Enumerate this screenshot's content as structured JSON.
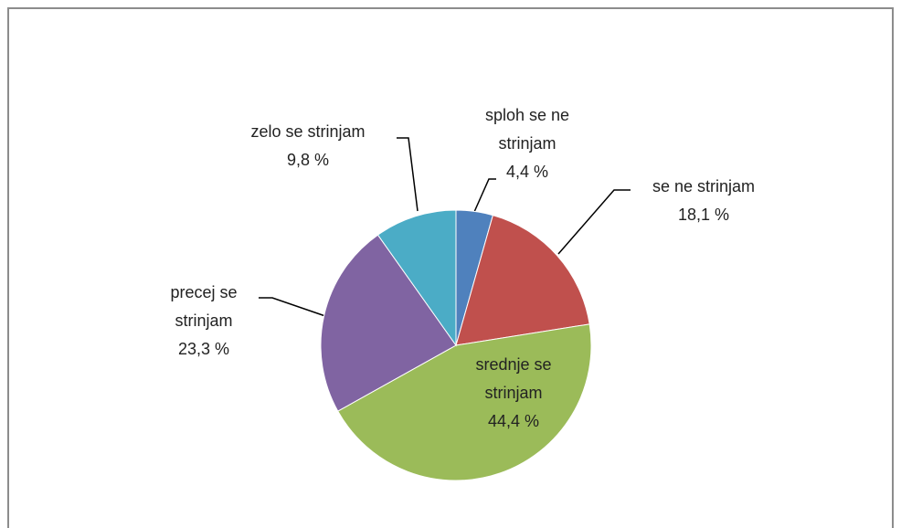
{
  "chart_data": {
    "type": "pie",
    "categories": [
      "sploh se ne strinjam",
      "se ne strinjam",
      "srednje se strinjam",
      "precej se strinjam",
      "zelo se strinjam"
    ],
    "values": [
      4.4,
      18.1,
      44.4,
      23.3,
      9.8
    ],
    "value_labels": [
      "4,4 %",
      "18,1 %",
      "44,4 %",
      "23,3 %",
      "9,8 %"
    ],
    "colors": [
      "#4f81bd",
      "#c0504d",
      "#9bbb59",
      "#8064a2",
      "#4bacc6"
    ]
  }
}
